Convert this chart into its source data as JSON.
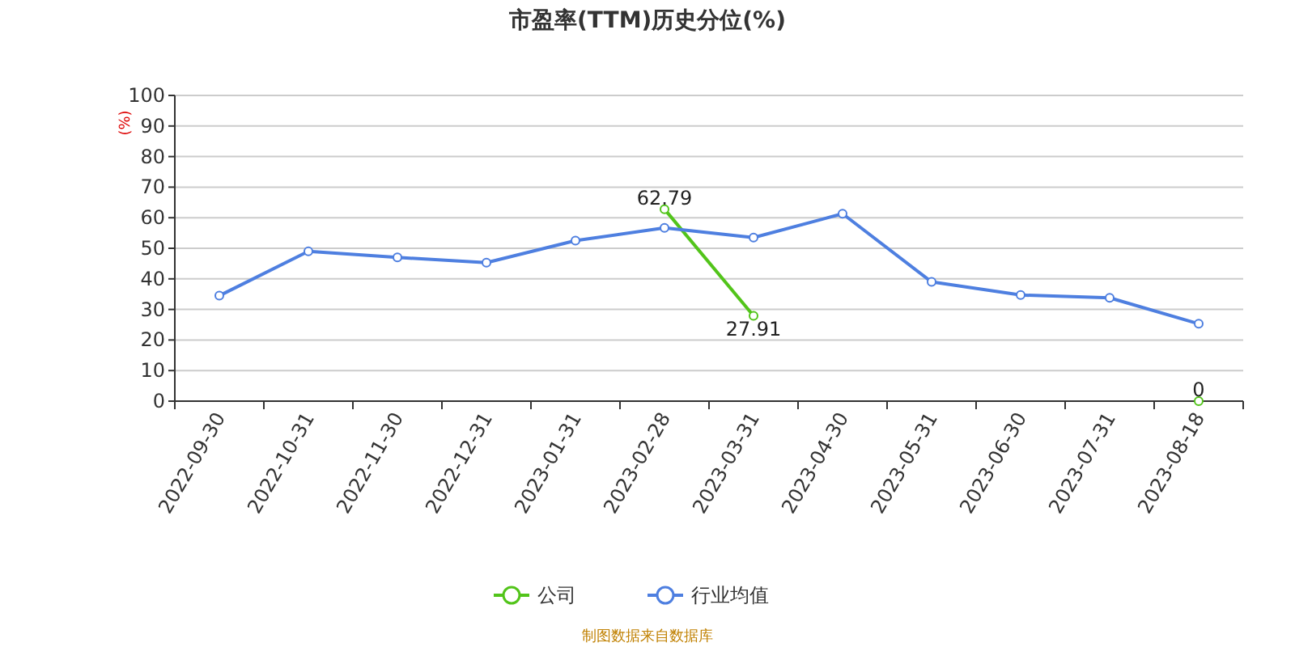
{
  "chart_data": {
    "type": "line",
    "title": "市盈率(TTM)历史分位(%)",
    "ylabel": "(%)",
    "categories": [
      "2022-09-30",
      "2022-10-31",
      "2022-11-30",
      "2022-12-31",
      "2023-01-31",
      "2023-02-28",
      "2023-03-31",
      "2023-04-30",
      "2023-05-31",
      "2023-06-30",
      "2023-07-31",
      "2023-08-18"
    ],
    "series": [
      {
        "name": "公司",
        "color": "#52c41a",
        "values": [
          null,
          null,
          null,
          null,
          null,
          62.79,
          27.91,
          null,
          null,
          null,
          null,
          0
        ],
        "value_labels": [
          null,
          null,
          null,
          null,
          null,
          "62.79",
          "27.91",
          null,
          null,
          null,
          null,
          "0"
        ]
      },
      {
        "name": "行业均值",
        "color": "#4e7fe0",
        "values": [
          34.5,
          49,
          47,
          45.3,
          52.5,
          56.7,
          53.5,
          61.3,
          39,
          34.7,
          33.8,
          25.3
        ]
      }
    ],
    "ylim": [
      0,
      100
    ],
    "yticks": [
      0,
      10,
      20,
      30,
      40,
      50,
      60,
      70,
      80,
      90,
      100
    ],
    "grid": "y",
    "legend": "bottom",
    "marker": "circle",
    "annotations": [
      "制图数据来自数据库"
    ]
  }
}
